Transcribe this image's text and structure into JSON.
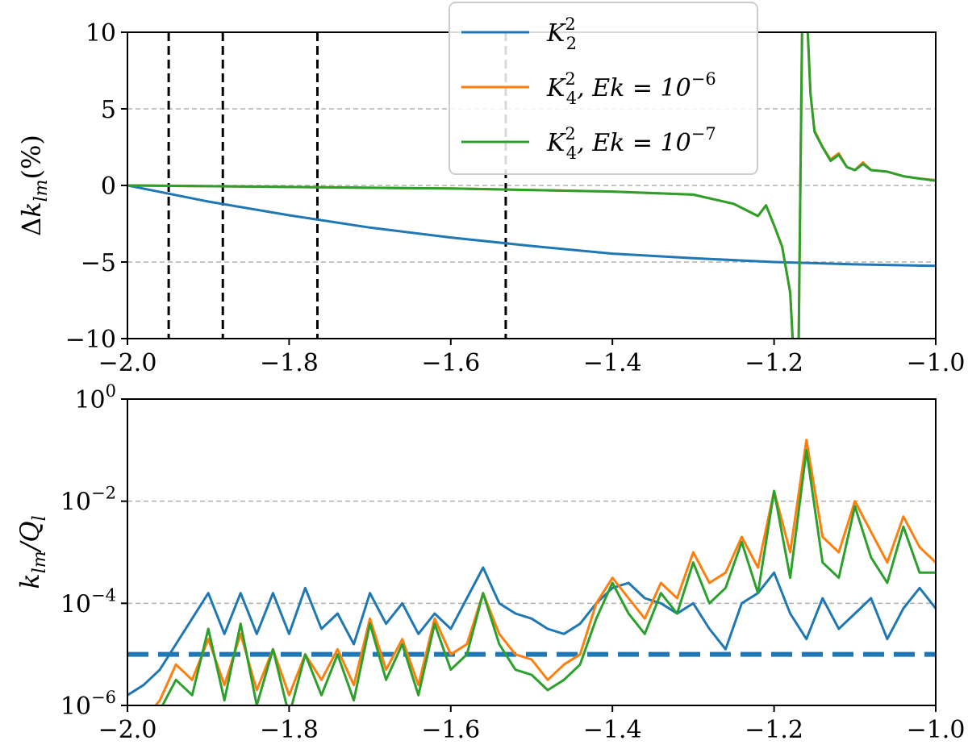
{
  "chart_data": [
    {
      "type": "line",
      "ylabel": {
        "prefix": "Δ",
        "base": "k",
        "sub": "lm",
        "suffix": "(%)"
      },
      "xlim": [
        -2.0,
        -1.0
      ],
      "ylim": [
        -10,
        10
      ],
      "xticks": [
        -2.0,
        -1.8,
        -1.6,
        -1.4,
        -1.2,
        -1.0
      ],
      "xtick_labels": [
        "−2.0",
        "−1.8",
        "−1.6",
        "−1.4",
        "−1.2",
        "−1.0"
      ],
      "yticks": [
        10,
        5,
        0,
        -5,
        -10
      ],
      "ytick_labels": [
        "10",
        "5",
        "0",
        "−5",
        "−10"
      ],
      "grid_y": [
        5,
        0,
        -5
      ],
      "vlines": [
        -1.949,
        -1.882,
        -1.765,
        -1.532
      ],
      "legend": {
        "placement": "top-right",
        "entries": [
          {
            "base": "K",
            "sub": "2",
            "sup": "2",
            "suffix": "",
            "exp": ""
          },
          {
            "base": "K",
            "sub": "4",
            "sup": "2",
            "suffix": ", Ek = 10",
            "exp": "−6"
          },
          {
            "base": "K",
            "sub": "4",
            "sup": "2",
            "suffix": ", Ek = 10",
            "exp": "−7"
          }
        ]
      },
      "series": [
        {
          "name": "K2^2",
          "color": "#1f77b4",
          "x": [
            -2.0,
            -1.9,
            -1.8,
            -1.7,
            -1.6,
            -1.5,
            -1.4,
            -1.3,
            -1.2,
            -1.1,
            -1.0
          ],
          "y": [
            0,
            -1.05,
            -1.95,
            -2.75,
            -3.4,
            -3.95,
            -4.45,
            -4.75,
            -5.0,
            -5.15,
            -5.25
          ]
        },
        {
          "name": "K4^2, Ek=1e-6",
          "color": "#ff7f0e",
          "x": [
            -2.0,
            -1.8,
            -1.6,
            -1.4,
            -1.3,
            -1.25,
            -1.22,
            -1.21,
            -1.2,
            -1.19,
            -1.18,
            -1.175,
            -1.17,
            -1.165,
            -1.16,
            -1.155,
            -1.15,
            -1.14,
            -1.13,
            -1.12,
            -1.11,
            -1.1,
            -1.09,
            -1.08,
            -1.06,
            -1.04,
            -1.02,
            -1.0
          ],
          "y": [
            0,
            -0.1,
            -0.2,
            -0.4,
            -0.6,
            -1.2,
            -2.0,
            -1.3,
            -2.6,
            -4,
            -7,
            -12,
            -12,
            12,
            12,
            6,
            3.6,
            2.5,
            1.7,
            2.1,
            1.2,
            1.0,
            1.5,
            1.0,
            0.9,
            0.6,
            0.45,
            0.35
          ]
        },
        {
          "name": "K4^2, Ek=1e-7",
          "color": "#2ca02c",
          "x": [
            -2.0,
            -1.8,
            -1.6,
            -1.4,
            -1.3,
            -1.25,
            -1.22,
            -1.21,
            -1.2,
            -1.19,
            -1.18,
            -1.175,
            -1.17,
            -1.165,
            -1.16,
            -1.155,
            -1.15,
            -1.14,
            -1.13,
            -1.12,
            -1.11,
            -1.1,
            -1.09,
            -1.08,
            -1.06,
            -1.04,
            -1.02,
            -1.0
          ],
          "y": [
            0,
            -0.1,
            -0.2,
            -0.4,
            -0.6,
            -1.2,
            -2.0,
            -1.3,
            -2.6,
            -4,
            -7,
            -12,
            -12,
            12,
            12,
            6,
            3.5,
            2.5,
            1.6,
            2.0,
            1.2,
            1.0,
            1.4,
            1.0,
            0.9,
            0.6,
            0.45,
            0.3
          ]
        }
      ]
    },
    {
      "type": "line",
      "yscale": "log",
      "ylabel": {
        "prefix": "",
        "base": "k",
        "sub": "lm",
        "suffix": "/Q",
        "sub2": "l"
      },
      "xlim": [
        -2.0,
        -1.0
      ],
      "ylim_log10": [
        -6,
        0
      ],
      "xticks": [
        -2.0,
        -1.8,
        -1.6,
        -1.4,
        -1.2,
        -1.0
      ],
      "xtick_labels": [
        "−2.0",
        "−1.8",
        "−1.6",
        "−1.4",
        "−1.2",
        "−1.0"
      ],
      "yticks_log10": [
        0,
        -2,
        -4,
        -6
      ],
      "ytick_exps": [
        "0",
        "−2",
        "−4",
        "−6"
      ],
      "ytick_base": "10",
      "grid_y_log10": [
        -2,
        -4
      ],
      "hline": {
        "value_log10": -5,
        "color": "#1f77b4",
        "style": "dashed"
      },
      "x": [
        -2.0,
        -1.98,
        -1.96,
        -1.94,
        -1.92,
        -1.9,
        -1.88,
        -1.86,
        -1.84,
        -1.82,
        -1.8,
        -1.78,
        -1.76,
        -1.74,
        -1.72,
        -1.7,
        -1.68,
        -1.66,
        -1.64,
        -1.62,
        -1.6,
        -1.58,
        -1.56,
        -1.54,
        -1.52,
        -1.5,
        -1.48,
        -1.46,
        -1.44,
        -1.42,
        -1.4,
        -1.38,
        -1.36,
        -1.34,
        -1.32,
        -1.3,
        -1.28,
        -1.26,
        -1.24,
        -1.22,
        -1.2,
        -1.18,
        -1.16,
        -1.14,
        -1.12,
        -1.1,
        -1.08,
        -1.06,
        -1.04,
        -1.02,
        -1.0
      ],
      "series": [
        {
          "name": "K2^2",
          "color": "#1f77b4",
          "log10_y": [
            -5.8,
            -5.6,
            -5.3,
            -4.8,
            -4.3,
            -3.8,
            -4.6,
            -3.8,
            -4.6,
            -3.8,
            -4.6,
            -3.7,
            -4.5,
            -4.2,
            -4.8,
            -3.8,
            -4.4,
            -4.0,
            -4.6,
            -4.2,
            -4.5,
            -3.9,
            -3.3,
            -4.0,
            -4.2,
            -4.3,
            -4.5,
            -4.6,
            -4.4,
            -4.0,
            -3.7,
            -3.6,
            -3.9,
            -4.0,
            -4.2,
            -4.0,
            -4.5,
            -4.9,
            -4.0,
            -3.8,
            -3.4,
            -4.2,
            -4.7,
            -3.9,
            -4.5,
            -4.2,
            -3.9,
            -4.7,
            -4.1,
            -3.7,
            -4.1
          ]
        },
        {
          "name": "K4^2, Ek=1e-6",
          "color": "#ff7f0e",
          "log10_y": [
            -6.5,
            -6.3,
            -5.9,
            -5.2,
            -5.5,
            -4.7,
            -5.6,
            -4.6,
            -5.7,
            -4.9,
            -5.8,
            -5.0,
            -5.5,
            -4.9,
            -5.6,
            -4.3,
            -5.3,
            -4.7,
            -5.6,
            -4.3,
            -5.0,
            -4.8,
            -3.8,
            -4.6,
            -5.0,
            -5.1,
            -5.5,
            -5.2,
            -5.0,
            -4.0,
            -3.5,
            -3.9,
            -4.3,
            -3.6,
            -3.9,
            -3.0,
            -3.6,
            -3.4,
            -2.7,
            -3.3,
            -1.8,
            -3.0,
            -0.8,
            -2.7,
            -3.0,
            -2.0,
            -2.6,
            -3.2,
            -2.3,
            -2.9,
            -3.2
          ]
        },
        {
          "name": "K4^2, Ek=1e-7",
          "color": "#2ca02c",
          "log10_y": [
            -6.8,
            -6.5,
            -6.1,
            -5.5,
            -5.8,
            -4.5,
            -5.9,
            -4.4,
            -6.0,
            -4.9,
            -6.2,
            -5.0,
            -5.8,
            -5.0,
            -5.9,
            -4.4,
            -5.5,
            -4.8,
            -5.8,
            -4.4,
            -5.3,
            -5.0,
            -3.8,
            -4.8,
            -5.3,
            -5.4,
            -5.7,
            -5.5,
            -5.2,
            -4.3,
            -3.6,
            -4.2,
            -4.6,
            -3.8,
            -4.2,
            -3.2,
            -4.0,
            -3.7,
            -2.8,
            -3.8,
            -1.8,
            -3.5,
            -1.0,
            -3.2,
            -3.5,
            -2.1,
            -3.1,
            -3.6,
            -2.5,
            -3.4,
            -3.4
          ]
        }
      ]
    }
  ]
}
